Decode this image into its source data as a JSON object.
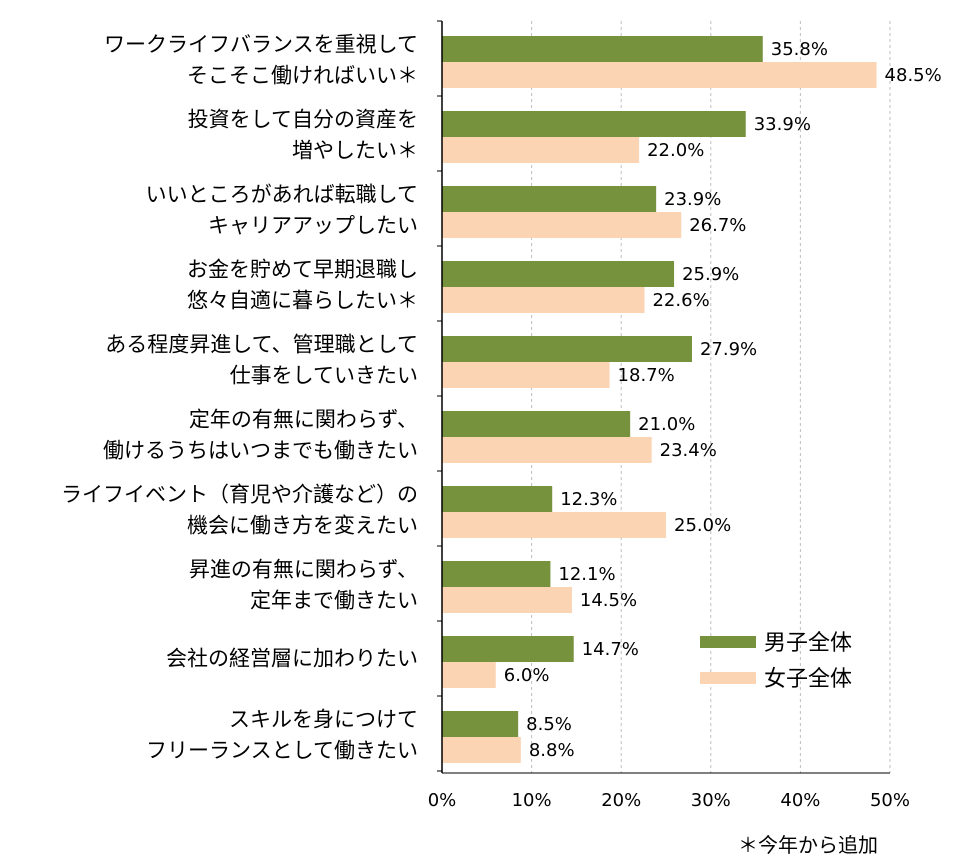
{
  "chart_data": {
    "type": "bar",
    "orientation": "horizontal",
    "categories": [
      [
        "ワークライフバランスを重視して",
        "そこそこ働ければいい＊"
      ],
      [
        "投資をして自分の資産を",
        "増やしたい＊"
      ],
      [
        "いいところがあれば転職して",
        "キャリアアップしたい"
      ],
      [
        "お金を貯めて早期退職し",
        "悠々自適に暮らしたい＊"
      ],
      [
        "ある程度昇進して、管理職として",
        "仕事をしていきたい"
      ],
      [
        "定年の有無に関わらず、",
        "働けるうちはいつまでも働きたい"
      ],
      [
        "ライフイベント（育児や介護など）の",
        "機会に働き方を変えたい"
      ],
      [
        "昇進の有無に関わらず、",
        "定年まで働きたい"
      ],
      [
        "会社の経営層に加わりたい"
      ],
      [
        "スキルを身につけて",
        "フリーランスとして働きたい"
      ]
    ],
    "series": [
      {
        "name": "男子全体",
        "color": "#76923c",
        "values": [
          35.8,
          33.9,
          23.9,
          25.9,
          27.9,
          21.0,
          12.3,
          12.1,
          14.7,
          8.5
        ],
        "labels": [
          "35.8%",
          "33.9%",
          "23.9%",
          "25.9%",
          "27.9%",
          "21.0%",
          "12.3%",
          "12.1%",
          "14.7%",
          "8.5%"
        ]
      },
      {
        "name": "女子全体",
        "color": "#fbd4b4",
        "values": [
          48.5,
          22.0,
          26.7,
          22.6,
          18.7,
          23.4,
          25.0,
          14.5,
          6.0,
          8.8
        ],
        "labels": [
          "48.5%",
          "22.0%",
          "26.7%",
          "22.6%",
          "18.7%",
          "23.4%",
          "25.0%",
          "14.5%",
          "6.0%",
          "8.8%"
        ]
      }
    ],
    "x_ticks": [
      "0%",
      "10%",
      "20%",
      "30%",
      "40%",
      "50%"
    ],
    "xlim": [
      0,
      50
    ],
    "grid": "vertical dashed",
    "legend_position": "lower-right",
    "footnote": "＊今年から追加"
  }
}
